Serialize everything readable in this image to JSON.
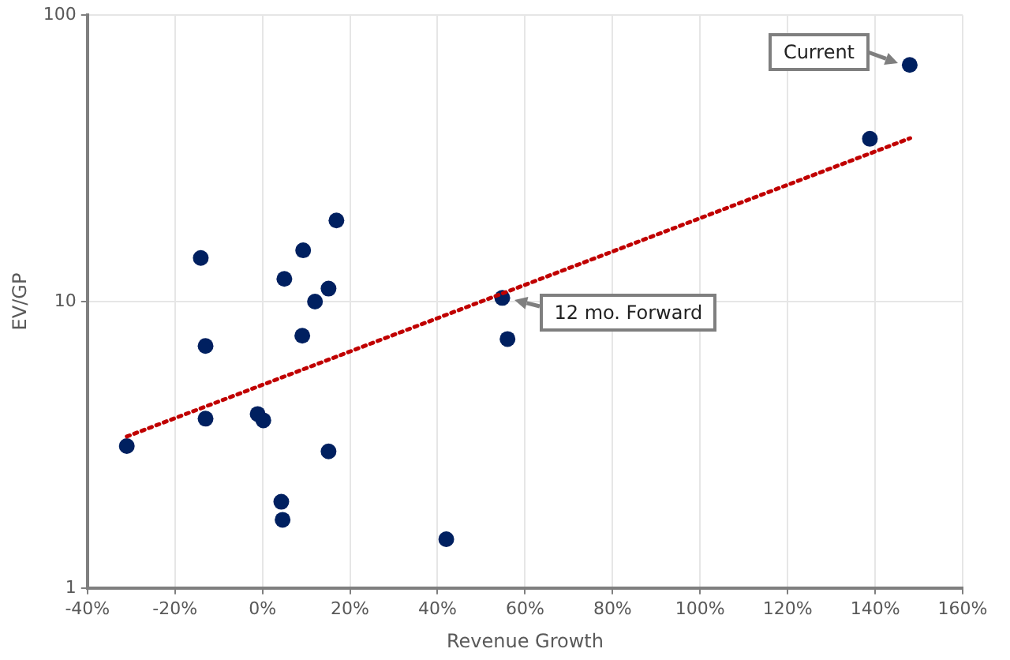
{
  "chart_data": {
    "type": "scatter",
    "xlabel": "Revenue Growth",
    "ylabel": "EV/GP",
    "log": "y",
    "grid": true,
    "marker": "circle",
    "xlim": [
      -40,
      160
    ],
    "xticks": [
      {
        "value": -40,
        "label": "-40%"
      },
      {
        "value": -20,
        "label": "-20%"
      },
      {
        "value": 0,
        "label": "0%"
      },
      {
        "value": 20,
        "label": "20%"
      },
      {
        "value": 40,
        "label": "40%"
      },
      {
        "value": 60,
        "label": "60%"
      },
      {
        "value": 80,
        "label": "80%"
      },
      {
        "value": 100,
        "label": "100%"
      },
      {
        "value": 120,
        "label": "120%"
      },
      {
        "value": 140,
        "label": "140%"
      },
      {
        "value": 160,
        "label": "160%"
      }
    ],
    "ylim": [
      1,
      100
    ],
    "yticks": [
      1,
      10,
      100
    ],
    "series": [
      {
        "type": "scatter",
        "color": "#002060",
        "x": [
          -31,
          -14.1,
          -13,
          -13,
          -1.1,
          0.2,
          5,
          9.3,
          9.1,
          12,
          15.1,
          16.9,
          15.1,
          4.3,
          4.6,
          42,
          54.8,
          56,
          138.8,
          147.9
        ],
        "values": [
          3.13,
          14.2,
          7,
          3.9,
          4.05,
          3.85,
          12,
          15.1,
          7.6,
          10,
          11.1,
          19.2,
          3,
          2,
          1.73,
          1.48,
          10.3,
          7.4,
          37,
          67
        ]
      },
      {
        "type": "line",
        "color": "#c00000",
        "line_style": "dotted",
        "marker": "none",
        "x": [
          -31,
          148
        ],
        "values": [
          3.38,
          37.2
        ]
      }
    ],
    "annotations": [
      {
        "text": "Current",
        "x": 147.9,
        "y": 67
      },
      {
        "text": "12 mo. Forward",
        "x": 54.8,
        "y": 10.3
      }
    ]
  }
}
